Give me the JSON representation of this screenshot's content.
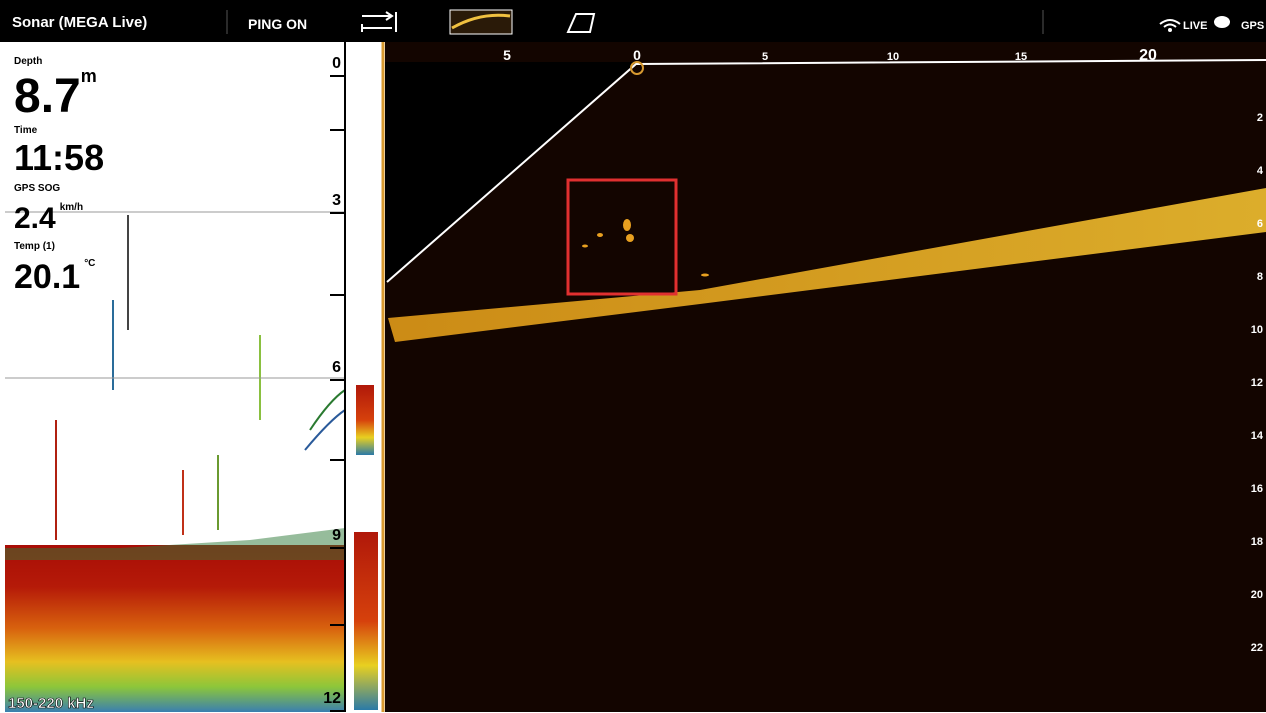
{
  "header": {
    "title": "Sonar (MEGA Live)",
    "ping": "PING ON",
    "live": "LIVE",
    "gps": "GPS"
  },
  "readouts": [
    {
      "label": "Depth",
      "value": "8.7",
      "unit": "m"
    },
    {
      "label": "Time",
      "value": "11:58"
    },
    {
      "label": "GPS SOG",
      "value": "2.4",
      "unit": "km/h"
    },
    {
      "label": "Temp (1)",
      "value": "20.1",
      "unit": "°C"
    }
  ],
  "downscan": {
    "depth_scale": [
      "0",
      "3",
      "6",
      "9",
      "12"
    ],
    "frequency": "150-220 kHz"
  },
  "live_view": {
    "range_scale": [
      "5",
      "0",
      "5",
      "10",
      "15",
      "20"
    ],
    "depth_scale": [
      "2",
      "4",
      "6",
      "8",
      "10",
      "12",
      "14",
      "16",
      "18",
      "20",
      "22"
    ]
  }
}
